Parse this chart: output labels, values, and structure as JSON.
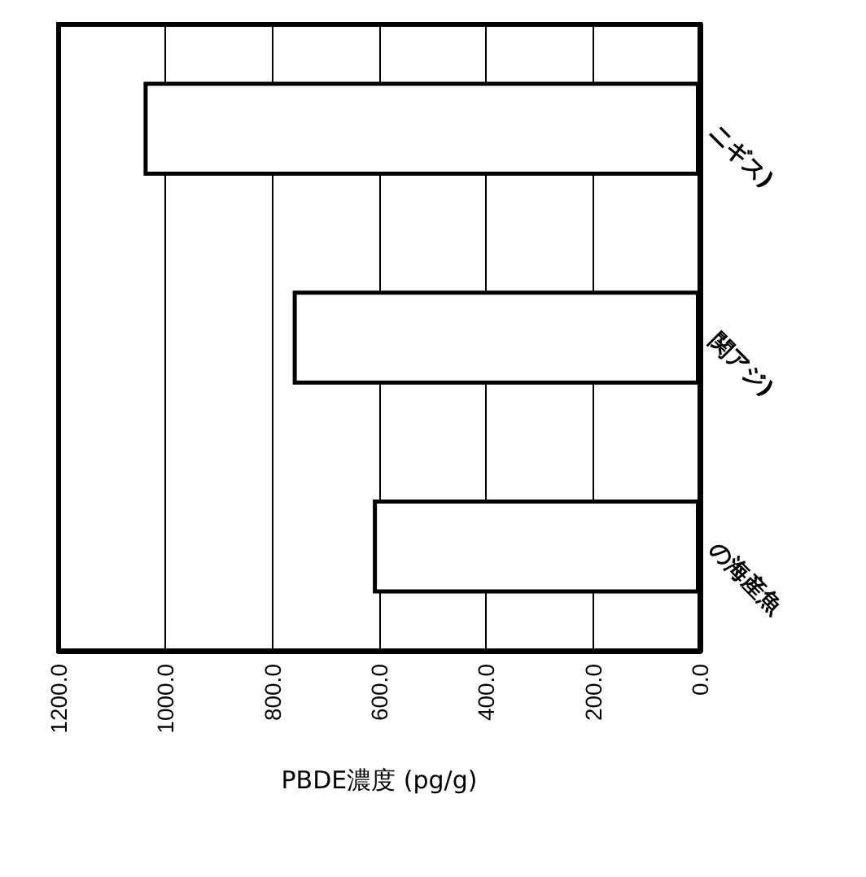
{
  "chart_data": {
    "type": "bar",
    "orientation": "horizontal",
    "xlabel": "PBDE濃度 (pg/g)",
    "categories": [
      "ニギス)",
      "関アジ)",
      "の海産魚"
    ],
    "values": [
      1041,
      762,
      612
    ],
    "color": "#ffffff",
    "xlim": [
      1200,
      0
    ],
    "xticks": [
      {
        "value": 1200,
        "label": "1200.0"
      },
      {
        "value": 1000,
        "label": "1000.0"
      },
      {
        "value": 800,
        "label": "800.0"
      },
      {
        "value": 600,
        "label": "600.0"
      },
      {
        "value": 400,
        "label": "400.0"
      },
      {
        "value": 200,
        "label": "200.0"
      },
      {
        "value": 0,
        "label": "0.0"
      }
    ],
    "grid": "x"
  }
}
